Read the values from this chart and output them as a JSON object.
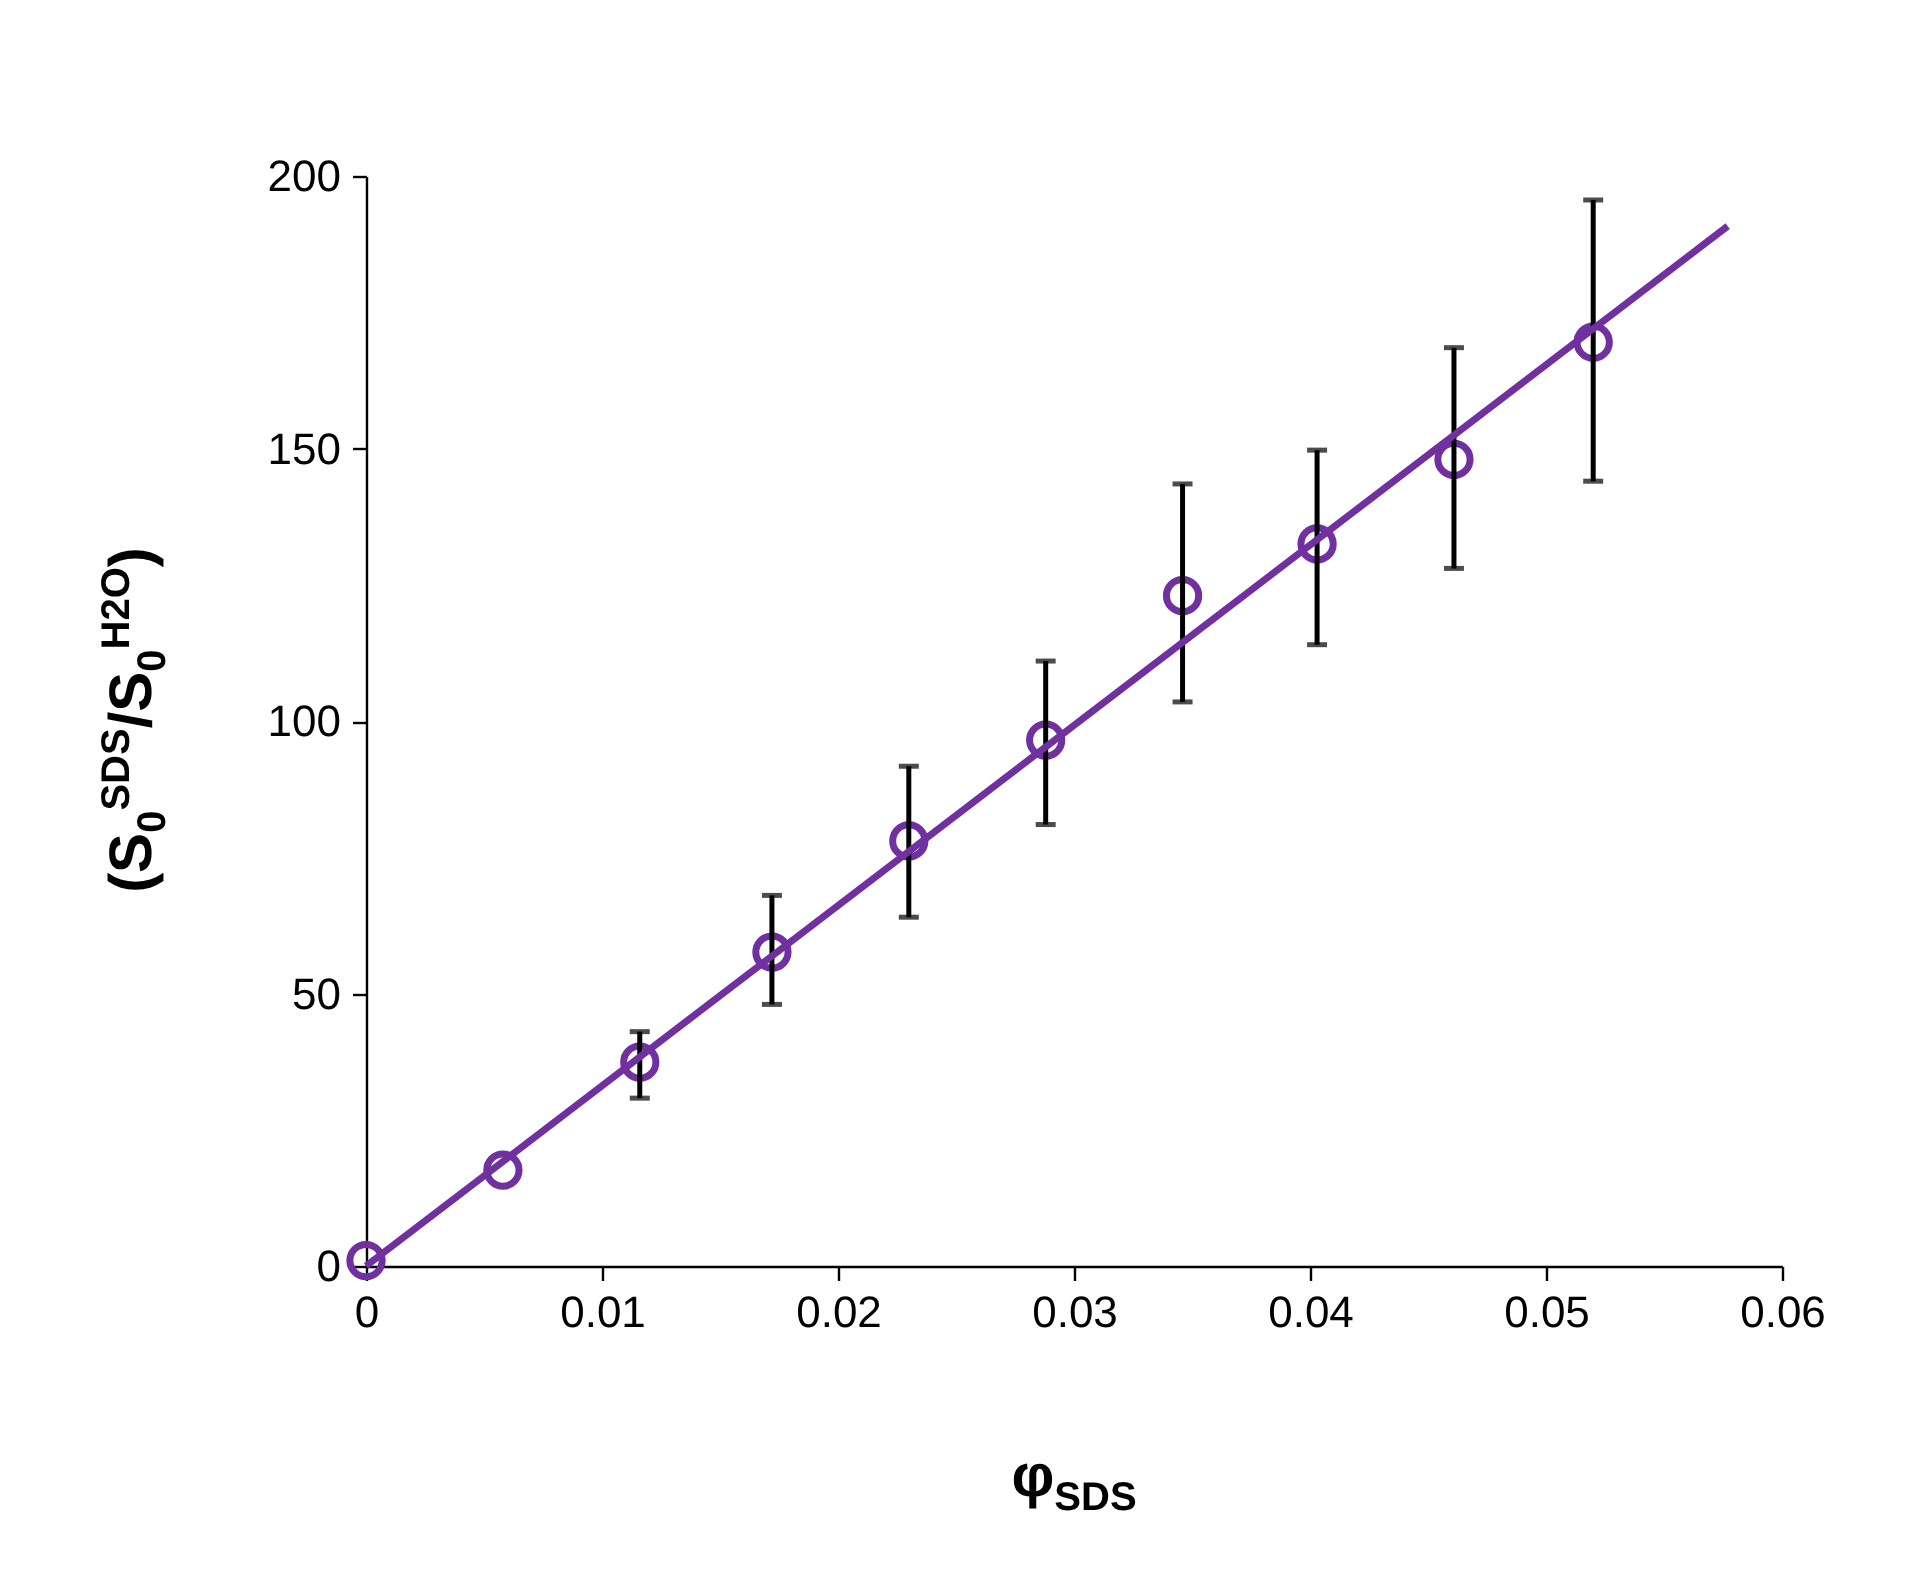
{
  "chart_data": {
    "type": "scatter",
    "xlabel": "φ$_{SDS}$",
    "ylabel": "(S$_{0}$$^{SDS}$/S$_{0}$$^{H2O}$)",
    "xlim": [
      0,
      0.06
    ],
    "xticks": [
      0,
      0.01,
      0.02,
      0.03,
      0.04,
      0.05,
      0.06
    ],
    "ylim": [
      0,
      200
    ],
    "yticks": [
      0,
      50,
      100,
      150,
      200
    ],
    "grid": false,
    "series": [
      {
        "marker": "circle",
        "color": "#7030a0",
        "x": [
          0,
          0.0058,
          0.0116,
          0.0172,
          0.023,
          0.0288,
          0.0346,
          0.0403,
          0.0461,
          0.052
        ],
        "values": [
          1,
          17.6,
          37.4,
          57.6,
          78,
          96.5,
          123,
          132.5,
          148,
          169.5
        ],
        "errors": [
          null,
          null,
          [
            30.8,
            43
          ],
          [
            48,
            68
          ],
          [
            64,
            91.7
          ],
          [
            81,
            111
          ],
          [
            103.5,
            143.5
          ],
          [
            114,
            149.7
          ],
          [
            128,
            168.5
          ],
          [
            144,
            195.6
          ]
        ]
      },
      {
        "type": "line",
        "color": "#7030a0",
        "line_style": "solid",
        "x": [
          0,
          0.0577
        ],
        "values": [
          0,
          190.8
        ]
      }
    ]
  }
}
